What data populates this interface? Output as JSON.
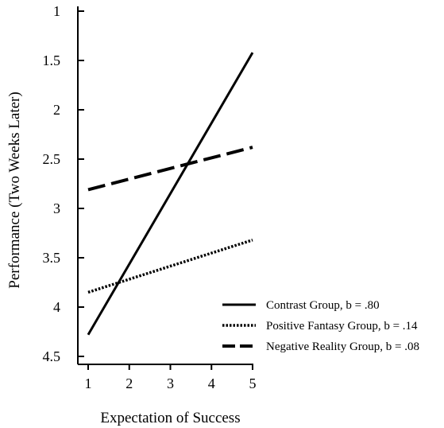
{
  "chart_data": {
    "type": "line",
    "xlabel": "Expectation of Success",
    "ylabel": "Performance (Two Weeks Later)",
    "x_ticks": [
      "1",
      "2",
      "3",
      "4",
      "5"
    ],
    "y_ticks": [
      "1",
      "1.5",
      "2",
      "2.5",
      "3",
      "3.5",
      "4",
      "4.5"
    ],
    "xlim": [
      1,
      5
    ],
    "ylim": [
      1,
      4.5
    ],
    "y_inverted": true,
    "grid": false,
    "legend_position": "bottom-right",
    "series": [
      {
        "name": "Contrast Group, b = .80",
        "style": "solid",
        "x": [
          1,
          5
        ],
        "y": [
          4.28,
          1.42
        ]
      },
      {
        "name": "Positive Fantasy Group, b = .14",
        "style": "dotted",
        "x": [
          1,
          5
        ],
        "y": [
          3.85,
          3.32
        ]
      },
      {
        "name": "Negative Reality Group, b = .08",
        "style": "dashed",
        "x": [
          1,
          5
        ],
        "y": [
          2.81,
          2.38
        ]
      }
    ]
  }
}
